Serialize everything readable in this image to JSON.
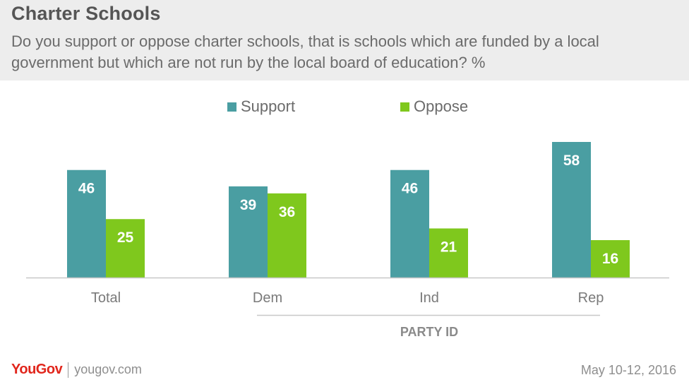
{
  "header": {
    "title": "Charter Schools",
    "subtitle": "Do you support or oppose charter schools, that is schools which are funded by a local government but which are not run by the local board of education? %"
  },
  "legend": [
    {
      "label": "Support",
      "color": "#4a9ea2"
    },
    {
      "label": "Oppose",
      "color": "#7fc81d"
    }
  ],
  "chart_data": {
    "type": "bar",
    "categories": [
      "Total",
      "Dem",
      "Ind",
      "Rep"
    ],
    "series": [
      {
        "name": "Support",
        "values": [
          46,
          39,
          46,
          58
        ],
        "color": "#4a9ea2"
      },
      {
        "name": "Oppose",
        "values": [
          25,
          36,
          21,
          16
        ],
        "color": "#7fc81d"
      }
    ],
    "group_label": "PARTY ID",
    "group_categories": [
      "Dem",
      "Ind",
      "Rep"
    ]
  },
  "footer": {
    "logo": "YouGov",
    "site": "yougov.com",
    "date": "May 10-12, 2016"
  }
}
